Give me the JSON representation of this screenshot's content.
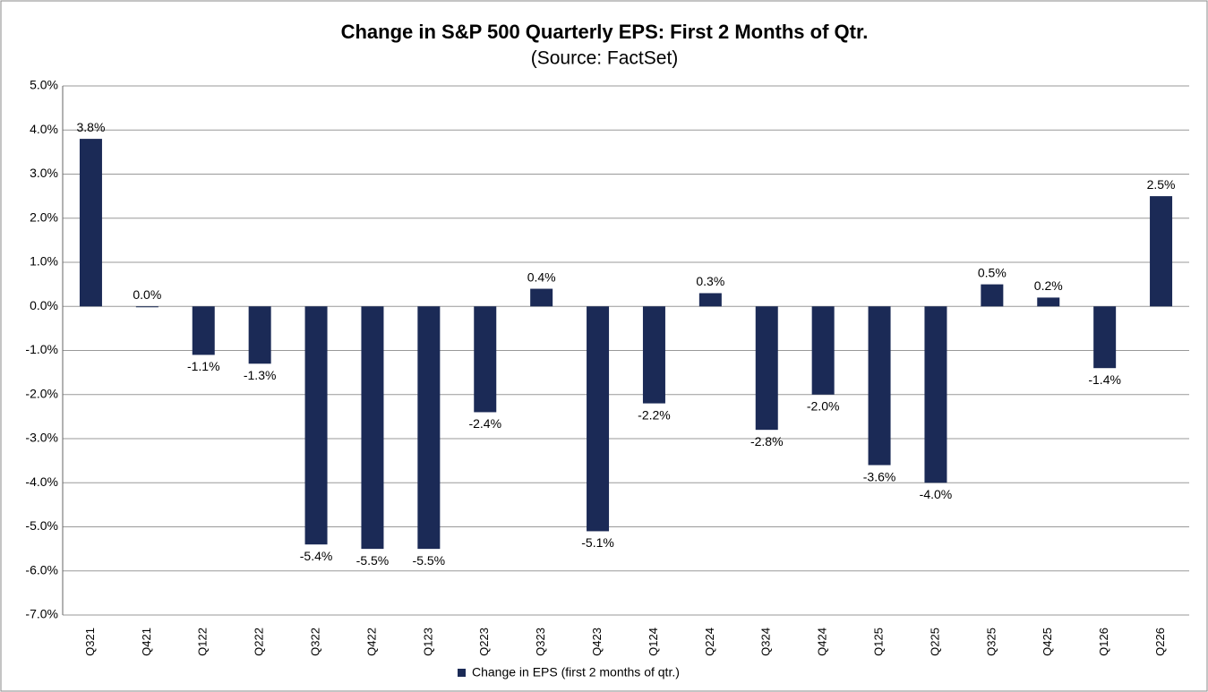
{
  "chart_data": {
    "type": "bar",
    "title": "Change in S&P 500 Quarterly EPS: First 2 Months of Qtr.",
    "subtitle": "(Source: FactSet)",
    "categories": [
      "Q321",
      "Q421",
      "Q122",
      "Q222",
      "Q322",
      "Q422",
      "Q123",
      "Q223",
      "Q323",
      "Q423",
      "Q124",
      "Q224",
      "Q324",
      "Q424",
      "Q125",
      "Q225",
      "Q325",
      "Q425",
      "Q126",
      "Q226"
    ],
    "series": [
      {
        "name": "Change in EPS (first 2 months of qtr.)",
        "color": "#1b2a56",
        "values": [
          3.8,
          0.0,
          -1.1,
          -1.3,
          -5.4,
          -5.5,
          -5.5,
          -2.4,
          0.4,
          -5.1,
          -2.2,
          0.3,
          -2.8,
          -2.0,
          -3.6,
          -4.0,
          0.5,
          0.2,
          -1.4,
          2.5
        ],
        "value_labels": [
          "3.8%",
          "0.0%",
          "-1.1%",
          "-1.3%",
          "-5.4%",
          "-5.5%",
          "-5.5%",
          "-2.4%",
          "0.4%",
          "-5.1%",
          "-2.2%",
          "0.3%",
          "-2.8%",
          "-2.0%",
          "-3.6%",
          "-4.0%",
          "0.5%",
          "0.2%",
          "-1.4%",
          "2.5%"
        ]
      }
    ],
    "ylim": [
      -7,
      5
    ],
    "yticks": [
      {
        "value": -7,
        "label": "-7.0%"
      },
      {
        "value": -6,
        "label": "-6.0%"
      },
      {
        "value": -5,
        "label": "-5.0%"
      },
      {
        "value": -4,
        "label": "-4.0%"
      },
      {
        "value": -3,
        "label": "-3.0%"
      },
      {
        "value": -2,
        "label": "-2.0%"
      },
      {
        "value": -1,
        "label": "-1.0%"
      },
      {
        "value": 0,
        "label": "0.0%"
      },
      {
        "value": 1,
        "label": "1.0%"
      },
      {
        "value": 2,
        "label": "2.0%"
      },
      {
        "value": 3,
        "label": "3.0%"
      },
      {
        "value": 4,
        "label": "4.0%"
      },
      {
        "value": 5,
        "label": "5.0%"
      }
    ],
    "grid": true,
    "legend": "bottom"
  }
}
